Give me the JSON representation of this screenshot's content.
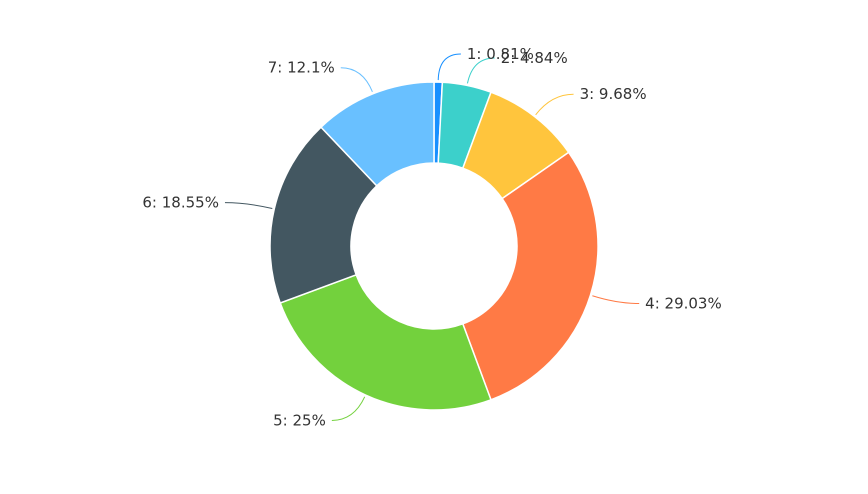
{
  "chart_data": {
    "type": "pie",
    "variant": "donut",
    "title": "",
    "legend": "none",
    "slices": [
      {
        "name": "1",
        "value": 0.81,
        "label": "1: 0.81%",
        "color": "#1890ff"
      },
      {
        "name": "2",
        "value": 4.84,
        "label": "2: 4.84%",
        "color": "#3cd0cb"
      },
      {
        "name": "3",
        "value": 9.68,
        "label": "3: 9.68%",
        "color": "#ffc53d"
      },
      {
        "name": "4",
        "value": 29.03,
        "label": "4: 29.03%",
        "color": "#ff7a45"
      },
      {
        "name": "5",
        "value": 25,
        "label": "5: 25%",
        "color": "#73d13d"
      },
      {
        "name": "6",
        "value": 18.55,
        "label": "6: 18.55%",
        "color": "#435761"
      },
      {
        "name": "7",
        "value": 12.1,
        "label": "7: 12.1%",
        "color": "#69c0ff"
      }
    ]
  }
}
